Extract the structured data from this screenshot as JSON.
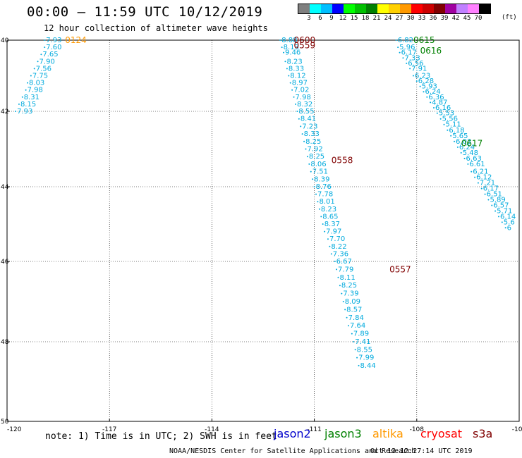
{
  "header": {
    "title": "00:00 – 11:59 UTC 10/12/2019",
    "subtitle": "12 hour collection of altimeter wave heights"
  },
  "color_scale": {
    "labels": [
      "3",
      "6",
      "9",
      "12",
      "15",
      "18",
      "21",
      "24",
      "27",
      "30",
      "33",
      "36",
      "39",
      "42",
      "45",
      "70"
    ],
    "unit": "(ft)",
    "colors": [
      "#7f7f7f",
      "#00ffff",
      "#00bfff",
      "#0000ff",
      "#00ff00",
      "#00c000",
      "#008000",
      "#ffff00",
      "#ffd000",
      "#ff9900",
      "#ff0000",
      "#cc0000",
      "#800000",
      "#a000a0",
      "#c080ff",
      "#ff80ff",
      "#000000"
    ]
  },
  "axes": {
    "lon_ticks": [
      "-120",
      "-117",
      "-114",
      "-111",
      "-108",
      "-105"
    ],
    "lat_ticks": [
      "40",
      "42",
      "44",
      "46",
      "48",
      "50"
    ]
  },
  "chart_data": {
    "type": "scatter",
    "title": "12 hour collection of altimeter wave heights",
    "x_label": "",
    "y_label": "",
    "xlim": [
      -120,
      -105
    ],
    "ylim": [
      40,
      50
    ],
    "x_ticks": [
      -120,
      -117,
      -114,
      -111,
      -108,
      -105
    ],
    "y_ticks": [
      40,
      42,
      44,
      46,
      48,
      50
    ],
    "grid": true,
    "tracks": [
      {
        "name": "jason3",
        "color": "#00aadd",
        "points": [
          {
            "x": -118.9,
            "y": 40.0,
            "v": "7.93"
          },
          {
            "x": -118.9,
            "y": 40.2,
            "v": "7.60"
          },
          {
            "x": -119.0,
            "y": 40.4,
            "v": "7.65"
          },
          {
            "x": -119.1,
            "y": 40.6,
            "v": "7.90"
          },
          {
            "x": -119.2,
            "y": 40.8,
            "v": "7.56"
          },
          {
            "x": -119.3,
            "y": 41.0,
            "v": "7.75"
          },
          {
            "x": -119.4,
            "y": 41.2,
            "v": "8.03"
          },
          {
            "x": -119.45,
            "y": 41.4,
            "v": "7.98"
          },
          {
            "x": -119.55,
            "y": 41.6,
            "v": "8.31"
          },
          {
            "x": -119.65,
            "y": 41.8,
            "v": "8.15"
          },
          {
            "x": -119.75,
            "y": 42.0,
            "v": "7.93"
          }
        ]
      },
      {
        "name": "jason3",
        "color": "#00aadd",
        "points": [
          {
            "x": -112.0,
            "y": 40.0,
            "v": "8.88"
          },
          {
            "x": -111.95,
            "y": 40.2,
            "v": "8.13"
          },
          {
            "x": -111.9,
            "y": 40.35,
            "v": "9.46"
          },
          {
            "x": -111.85,
            "y": 40.6,
            "v": "8.23"
          },
          {
            "x": -111.8,
            "y": 40.8,
            "v": "8.33"
          },
          {
            "x": -111.75,
            "y": 41.0,
            "v": "8.12"
          },
          {
            "x": -111.7,
            "y": 41.2,
            "v": "8.97"
          },
          {
            "x": -111.65,
            "y": 41.4,
            "v": "7.02"
          },
          {
            "x": -111.6,
            "y": 41.6,
            "v": "7.98"
          },
          {
            "x": -111.55,
            "y": 41.8,
            "v": "8.32"
          },
          {
            "x": -111.5,
            "y": 42.0,
            "v": "8.55"
          },
          {
            "x": -111.45,
            "y": 42.2,
            "v": "8.41"
          },
          {
            "x": -111.4,
            "y": 42.4,
            "v": "7.23"
          },
          {
            "x": -111.35,
            "y": 42.6,
            "v": "8.33"
          },
          {
            "x": -111.3,
            "y": 42.8,
            "v": "8.25"
          },
          {
            "x": -111.25,
            "y": 43.0,
            "v": "7.92"
          },
          {
            "x": -111.2,
            "y": 43.2,
            "v": "8.25"
          },
          {
            "x": -111.15,
            "y": 43.4,
            "v": "8.06"
          },
          {
            "x": -111.1,
            "y": 43.6,
            "v": "7.51"
          },
          {
            "x": -111.05,
            "y": 43.8,
            "v": "8.39"
          },
          {
            "x": -111.0,
            "y": 44.0,
            "v": "8.76"
          },
          {
            "x": -110.95,
            "y": 44.2,
            "v": "7.78"
          },
          {
            "x": -110.9,
            "y": 44.4,
            "v": "8.01"
          },
          {
            "x": -110.85,
            "y": 44.6,
            "v": "8.23"
          },
          {
            "x": -110.8,
            "y": 44.8,
            "v": "8.65"
          },
          {
            "x": -110.75,
            "y": 45.0,
            "v": "8.37"
          },
          {
            "x": -110.7,
            "y": 45.2,
            "v": "7.97"
          },
          {
            "x": -110.6,
            "y": 45.4,
            "v": "7.70"
          },
          {
            "x": -110.55,
            "y": 45.6,
            "v": "8.22"
          },
          {
            "x": -110.5,
            "y": 45.8,
            "v": "7.36"
          },
          {
            "x": -110.4,
            "y": 46.0,
            "v": "6.67"
          },
          {
            "x": -110.35,
            "y": 46.2,
            "v": "7.79"
          },
          {
            "x": -110.3,
            "y": 46.4,
            "v": "8.11"
          },
          {
            "x": -110.25,
            "y": 46.6,
            "v": "8.25"
          },
          {
            "x": -110.2,
            "y": 46.8,
            "v": "7.39"
          },
          {
            "x": -110.15,
            "y": 47.0,
            "v": "8.09"
          },
          {
            "x": -110.1,
            "y": 47.2,
            "v": "8.57"
          },
          {
            "x": -110.05,
            "y": 47.4,
            "v": "7.84"
          },
          {
            "x": -110.0,
            "y": 47.6,
            "v": "7.64"
          },
          {
            "x": -109.9,
            "y": 47.8,
            "v": "7.89"
          },
          {
            "x": -109.85,
            "y": 48.0,
            "v": "7.41"
          },
          {
            "x": -109.8,
            "y": 48.2,
            "v": "8.55"
          },
          {
            "x": -109.75,
            "y": 48.4,
            "v": "7.99"
          },
          {
            "x": -109.7,
            "y": 48.6,
            "v": "8.44"
          }
        ]
      },
      {
        "name": "jason3",
        "color": "#00aadd",
        "points": [
          {
            "x": -108.6,
            "y": 40.0,
            "v": "6.82"
          },
          {
            "x": -108.55,
            "y": 40.2,
            "v": "5.96"
          },
          {
            "x": -108.5,
            "y": 40.35,
            "v": "6.17"
          },
          {
            "x": -108.4,
            "y": 40.5,
            "v": "7.33"
          },
          {
            "x": -108.3,
            "y": 40.65,
            "v": "6.56"
          },
          {
            "x": -108.2,
            "y": 40.8,
            "v": "7.91"
          },
          {
            "x": -108.1,
            "y": 41.0,
            "v": "6.23"
          },
          {
            "x": -108.0,
            "y": 41.15,
            "v": "6.28"
          },
          {
            "x": -107.9,
            "y": 41.3,
            "v": "5.93"
          },
          {
            "x": -107.8,
            "y": 41.45,
            "v": "6.24"
          },
          {
            "x": -107.7,
            "y": 41.6,
            "v": "6.36"
          },
          {
            "x": -107.6,
            "y": 41.75,
            "v": "4.87"
          },
          {
            "x": -107.5,
            "y": 41.9,
            "v": "6.16"
          },
          {
            "x": -107.4,
            "y": 42.05,
            "v": "5.53"
          },
          {
            "x": -107.3,
            "y": 42.2,
            "v": "5.56"
          },
          {
            "x": -107.2,
            "y": 42.35,
            "v": "5.11"
          },
          {
            "x": -107.1,
            "y": 42.5,
            "v": "6.18"
          },
          {
            "x": -107.0,
            "y": 42.65,
            "v": "5.65"
          },
          {
            "x": -106.9,
            "y": 42.8,
            "v": "6.03"
          },
          {
            "x": -106.8,
            "y": 42.95,
            "v": "6.24"
          },
          {
            "x": -106.7,
            "y": 43.1,
            "v": "5.48"
          },
          {
            "x": -106.6,
            "y": 43.25,
            "v": "6.63"
          },
          {
            "x": -106.5,
            "y": 43.4,
            "v": "6.61"
          },
          {
            "x": -106.4,
            "y": 43.6,
            "v": "6.21"
          },
          {
            "x": -106.3,
            "y": 43.75,
            "v": "6.12"
          },
          {
            "x": -106.2,
            "y": 43.9,
            "v": "7.21"
          },
          {
            "x": -106.1,
            "y": 44.05,
            "v": "6.17"
          },
          {
            "x": -106.0,
            "y": 44.2,
            "v": "6.51"
          },
          {
            "x": -105.9,
            "y": 44.35,
            "v": "5.89"
          },
          {
            "x": -105.8,
            "y": 44.5,
            "v": "6.57"
          },
          {
            "x": -105.7,
            "y": 44.65,
            "v": "5.71"
          },
          {
            "x": -105.6,
            "y": 44.8,
            "v": "6.14"
          },
          {
            "x": -105.5,
            "y": 44.95,
            "v": "5.6"
          },
          {
            "x": -105.4,
            "y": 45.1,
            "v": "6"
          }
        ]
      }
    ],
    "time_labels": [
      {
        "x": -118.3,
        "y": 40.0,
        "text": "0124",
        "color": "#ff9900"
      },
      {
        "x": -111.6,
        "y": 40.0,
        "text": "0600",
        "color": "#800000"
      },
      {
        "x": -111.6,
        "y": 40.15,
        "text": "0559",
        "color": "#800000"
      },
      {
        "x": -108.1,
        "y": 40.0,
        "text": "0615",
        "color": "#008000"
      },
      {
        "x": -107.9,
        "y": 40.3,
        "text": "0616",
        "color": "#008000"
      },
      {
        "x": -106.7,
        "y": 42.85,
        "text": "0617",
        "color": "#008000"
      },
      {
        "x": -110.5,
        "y": 43.3,
        "text": "0558",
        "color": "#800000"
      },
      {
        "x": -108.8,
        "y": 46.2,
        "text": "0557",
        "color": "#800000"
      }
    ]
  },
  "footer": {
    "note": "note: 1) Time is in UTC; 2) SWH is in feet",
    "legend": [
      {
        "label": "jason2",
        "color": "#0000cc"
      },
      {
        "label": "jason3",
        "color": "#008000"
      },
      {
        "label": "altika",
        "color": "#ff9900"
      },
      {
        "label": "cryosat",
        "color": "#ff0000"
      },
      {
        "label": "s3a",
        "color": "#800000"
      }
    ],
    "credit": "NOAA/NESDIS Center for Satellite Applications and Research",
    "timestamp": "Oct 13 12:27:14 UTC 2019"
  }
}
